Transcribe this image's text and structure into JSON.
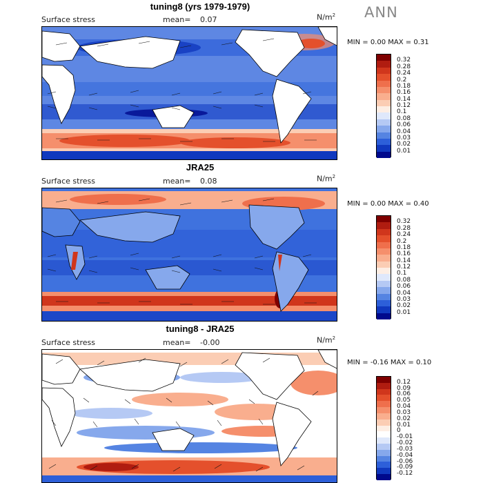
{
  "season": "ANN",
  "panels": [
    {
      "title": "tuning8 (yrs 1979-1979)",
      "field": "Surface stress",
      "mean_label": "mean=",
      "mean": "0.07",
      "units": "N/m",
      "units_exp": "2",
      "min_label": "MIN =",
      "min": "0.00",
      "max_label": "MAX =",
      "max": "0.31",
      "levels": [
        "0.32",
        "0.28",
        "0.24",
        "0.2",
        "0.18",
        "0.16",
        "0.14",
        "0.12",
        "0.1",
        "0.08",
        "0.06",
        "0.04",
        "0.03",
        "0.02",
        "0.01"
      ],
      "colors": [
        "#7f0000",
        "#b01c10",
        "#d0361c",
        "#e4502c",
        "#ef6f4c",
        "#f58f6c",
        "#f9ae8e",
        "#fbcdb4",
        "#fdeee4",
        "#dfe8fb",
        "#b5c9f4",
        "#86a8ec",
        "#5584e2",
        "#2d5fd9",
        "#1038be",
        "#00098c"
      ]
    },
    {
      "title": "JRA25",
      "field": "Surface stress",
      "mean_label": "mean=",
      "mean": "0.08",
      "units": "N/m",
      "units_exp": "2",
      "min_label": "MIN =",
      "min": "0.00",
      "max_label": "MAX =",
      "max": "0.40",
      "levels": [
        "0.32",
        "0.28",
        "0.24",
        "0.2",
        "0.18",
        "0.16",
        "0.14",
        "0.12",
        "0.1",
        "0.08",
        "0.06",
        "0.04",
        "0.03",
        "0.02",
        "0.01"
      ],
      "colors": [
        "#7f0000",
        "#b01c10",
        "#d0361c",
        "#e4502c",
        "#ef6f4c",
        "#f58f6c",
        "#f9ae8e",
        "#fbcdb4",
        "#fdeee4",
        "#dfe8fb",
        "#b5c9f4",
        "#86a8ec",
        "#5584e2",
        "#2d5fd9",
        "#1038be",
        "#00098c"
      ]
    },
    {
      "title": "tuning8 - JRA25",
      "field": "Surface stress",
      "mean_label": "mean=",
      "mean": "-0.00",
      "units": "N/m",
      "units_exp": "2",
      "min_label": "MIN =",
      "min": "-0.16",
      "max_label": "MAX =",
      "max": "0.10",
      "levels": [
        "0.12",
        "0.09",
        "0.06",
        "0.05",
        "0.04",
        "0.03",
        "0.02",
        "0.01",
        "0",
        "-0.01",
        "-0.02",
        "-0.03",
        "-0.04",
        "-0.06",
        "-0.09",
        "-0.12"
      ],
      "colors": [
        "#7f0000",
        "#b01c10",
        "#d0361c",
        "#e4502c",
        "#ef6f4c",
        "#f58f6c",
        "#f9ae8e",
        "#fbcdb4",
        "#fdeee4",
        "#ffffff",
        "#dfe8fb",
        "#b5c9f4",
        "#86a8ec",
        "#5584e2",
        "#2d5fd9",
        "#1038be",
        "#00098c"
      ]
    }
  ]
}
